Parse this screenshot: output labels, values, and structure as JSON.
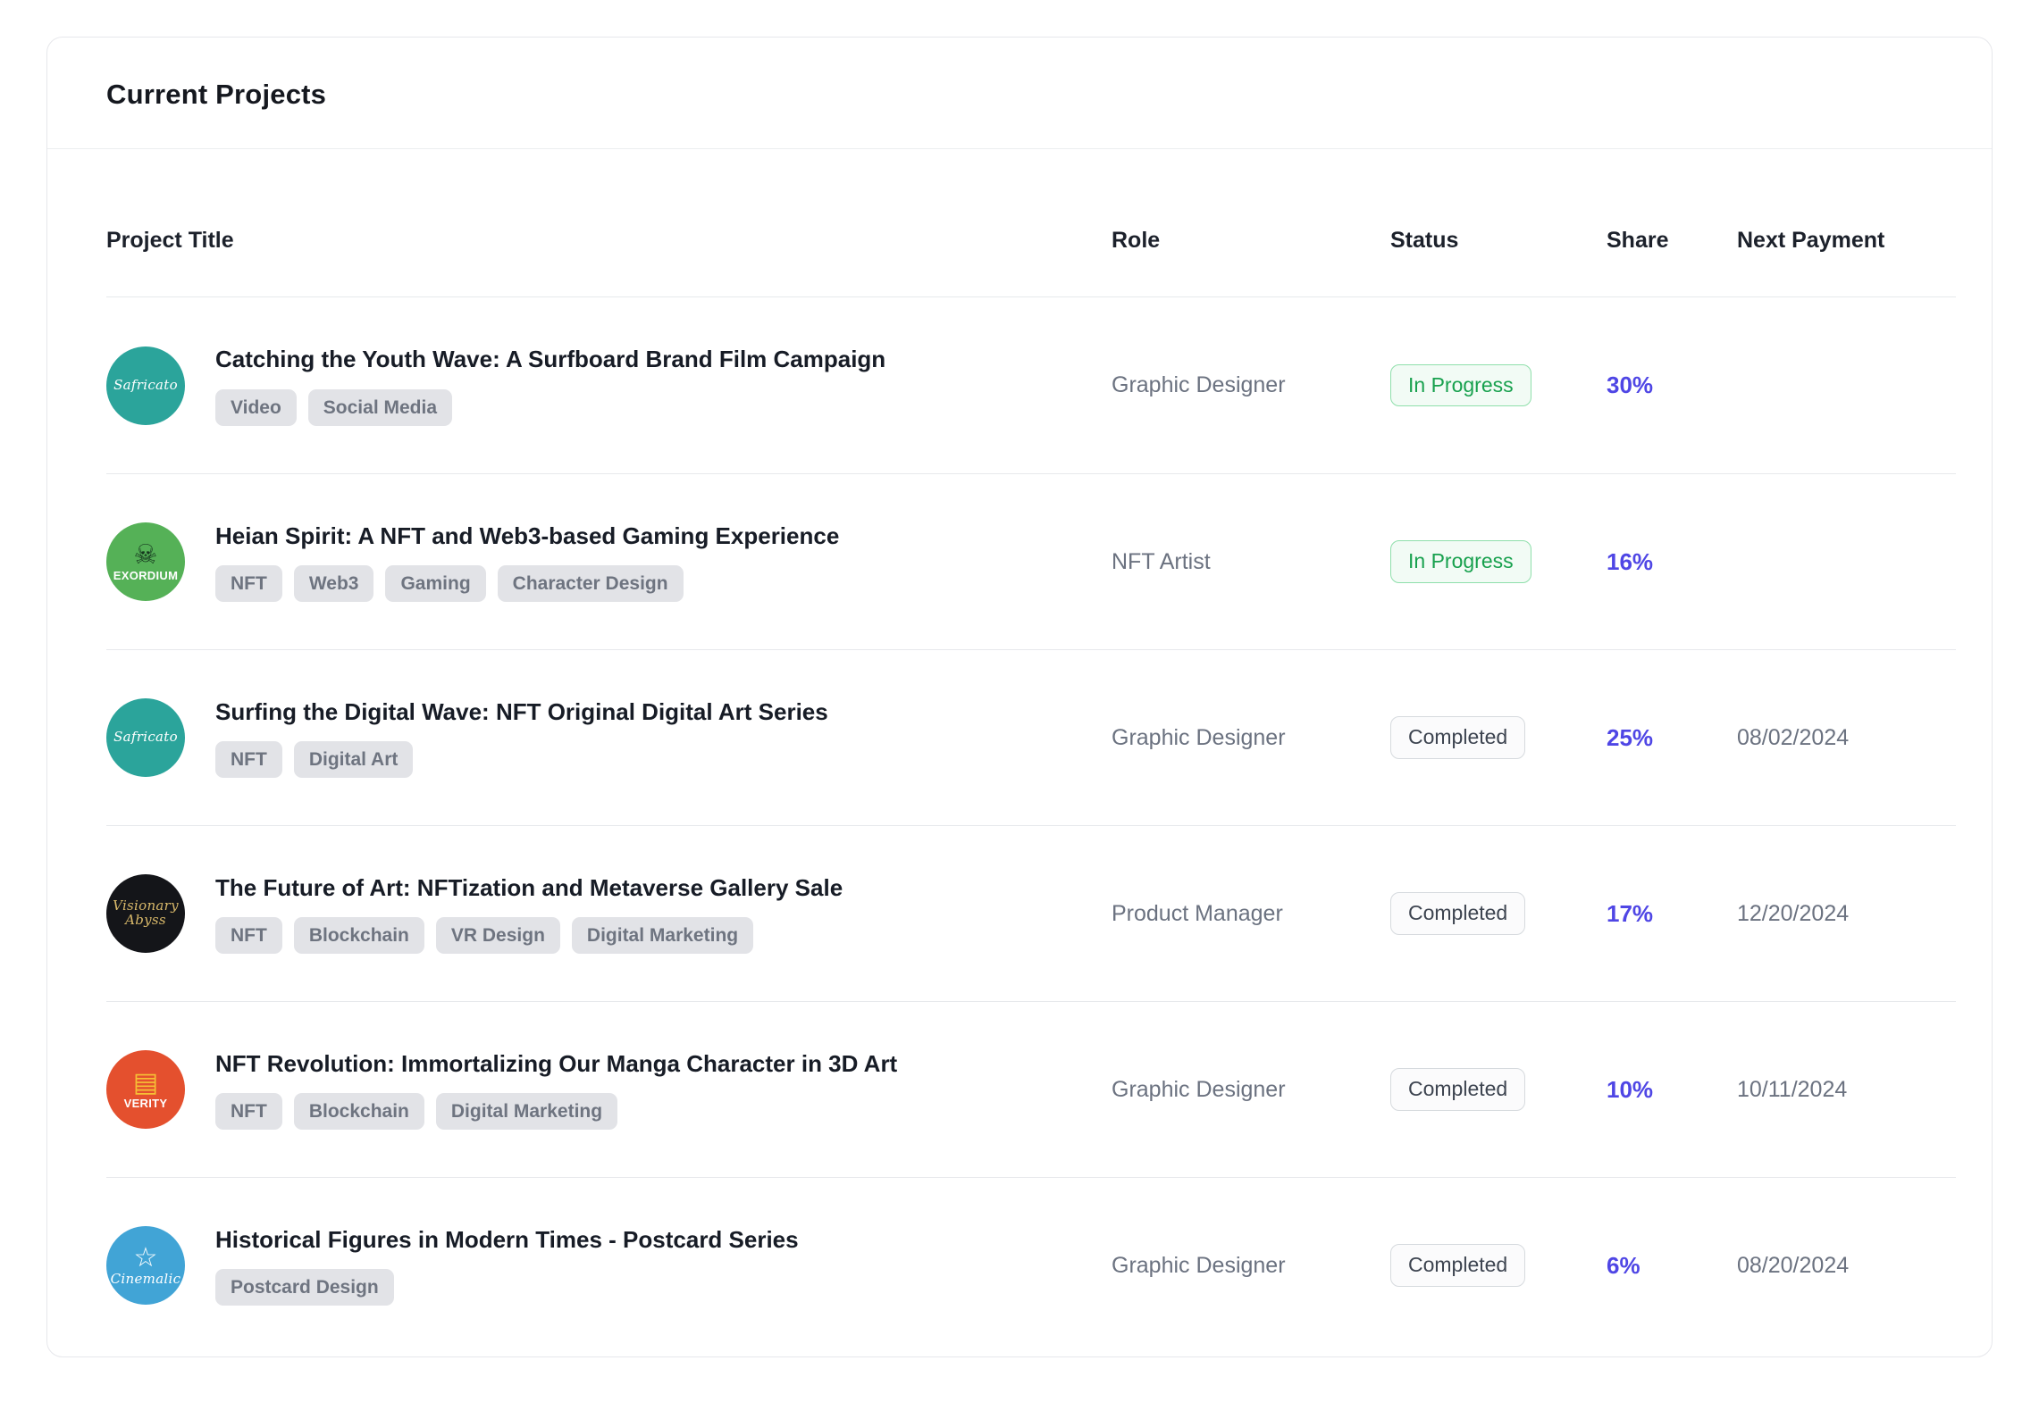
{
  "card": {
    "title": "Current Projects"
  },
  "colors": {
    "accent_share": "#4f46e5",
    "status_in_progress": "#18a14e",
    "status_completed": "#3d4450",
    "tag_background": "#e2e3e7"
  },
  "table": {
    "columns": [
      "Project Title",
      "Role",
      "Status",
      "Share",
      "Next Payment"
    ],
    "rows": [
      {
        "title": "Catching the Youth Wave: A Surfboard Brand Film Campaign",
        "tags": [
          "Video",
          "Social Media"
        ],
        "role": "Graphic Designer",
        "status": "In Progress",
        "status_variant": "in-progress",
        "share": "30%",
        "next_payment": "",
        "avatar": {
          "label": "Safricato",
          "bg": "#2ba49b",
          "fg": "#ffffff",
          "icon": "logo-text-icon",
          "icon_color": "#ffffff",
          "script": true
        }
      },
      {
        "title": "Heian Spirit: A NFT and Web3-based Gaming Experience",
        "tags": [
          "NFT",
          "Web3",
          "Gaming",
          "Character Design"
        ],
        "role": "NFT Artist",
        "status": "In Progress",
        "status_variant": "in-progress",
        "share": "16%",
        "next_payment": "",
        "avatar": {
          "label": "EXORDIUM",
          "bg": "#55b157",
          "fg": "#ffffff",
          "icon": "skull-icon",
          "icon_color": "#16381f",
          "script": false
        }
      },
      {
        "title": "Surfing the Digital Wave: NFT Original Digital Art Series",
        "tags": [
          "NFT",
          "Digital Art"
        ],
        "role": "Graphic Designer",
        "status": "Completed",
        "status_variant": "completed",
        "share": "25%",
        "next_payment": "08/02/2024",
        "avatar": {
          "label": "Safricato",
          "bg": "#2ba49b",
          "fg": "#ffffff",
          "icon": "logo-text-icon",
          "icon_color": "#ffffff",
          "script": true
        }
      },
      {
        "title": "The Future of Art: NFTization and Metaverse Gallery Sale",
        "tags": [
          "NFT",
          "Blockchain",
          "VR Design",
          "Digital Marketing"
        ],
        "role": "Product Manager",
        "status": "Completed",
        "status_variant": "completed",
        "share": "17%",
        "next_payment": "12/20/2024",
        "avatar": {
          "label": "Visionary Abyss",
          "bg": "#141519",
          "fg": "#d9b96a",
          "icon": "logo-text-icon",
          "icon_color": "#d9b96a",
          "script": true
        }
      },
      {
        "title": "NFT Revolution: Immortalizing Our Manga Character in 3D Art",
        "tags": [
          "NFT",
          "Blockchain",
          "Digital Marketing"
        ],
        "role": "Graphic Designer",
        "status": "Completed",
        "status_variant": "completed",
        "share": "10%",
        "next_payment": "10/11/2024",
        "avatar": {
          "label": "VERITY",
          "bg": "#e4502e",
          "fg": "#ffffff",
          "icon": "book-icon",
          "icon_color": "#f6c035",
          "script": false
        }
      },
      {
        "title": "Historical Figures in Modern Times - Postcard Series",
        "tags": [
          "Postcard Design"
        ],
        "role": "Graphic Designer",
        "status": "Completed",
        "status_variant": "completed",
        "share": "6%",
        "next_payment": "08/20/2024",
        "avatar": {
          "label": "Cinemalic",
          "bg": "#41a4d6",
          "fg": "#ffffff",
          "icon": "star-icon",
          "icon_color": "#ffffff",
          "script": true
        }
      }
    ]
  }
}
